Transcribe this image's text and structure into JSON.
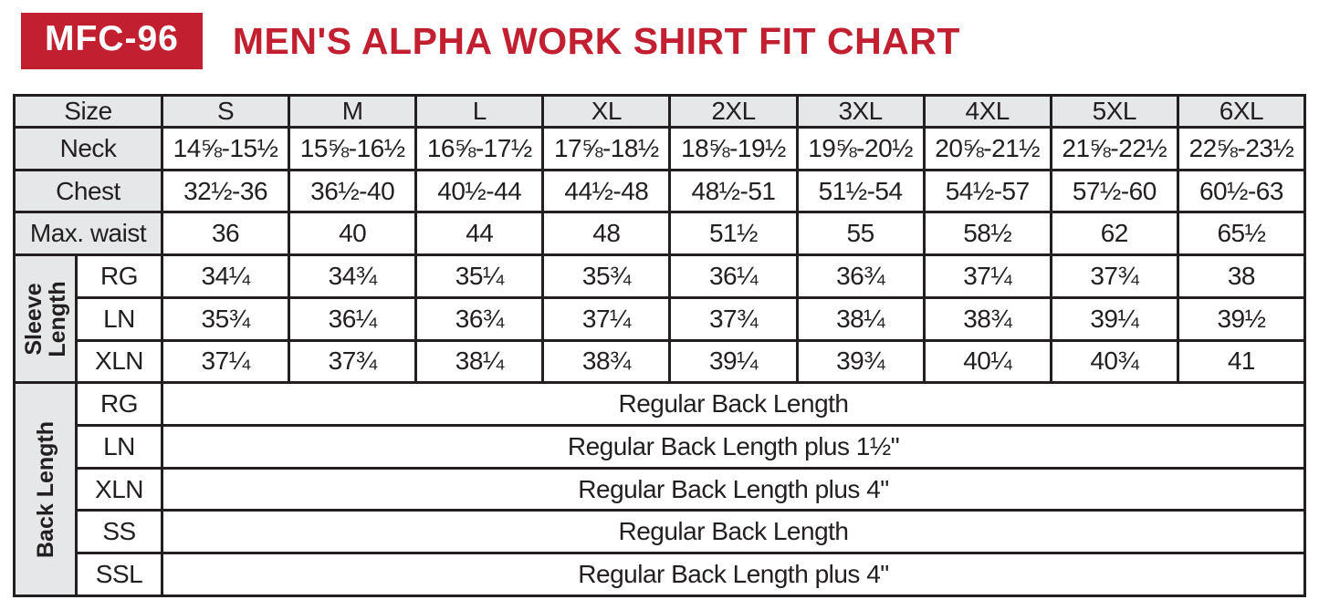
{
  "theme": {
    "accent": "#C22030",
    "header_bg": "#E6E7E8",
    "border": "#231F20",
    "text": "#231F20"
  },
  "chart_data": {
    "type": "table",
    "code": "MFC-96",
    "title": "MEN'S ALPHA WORK SHIRT FIT CHART",
    "columns": [
      "Size",
      "S",
      "M",
      "L",
      "XL",
      "2XL",
      "3XL",
      "4XL",
      "5XL",
      "6XL"
    ],
    "measurement_rows": [
      {
        "label": "Neck",
        "values": [
          "14⅝-15½",
          "15⅝-16½",
          "16⅝-17½",
          "17⅝-18½",
          "18⅝-19½",
          "19⅝-20½",
          "20⅝-21½",
          "21⅝-22½",
          "22⅝-23½"
        ]
      },
      {
        "label": "Chest",
        "values": [
          "32½-36",
          "36½-40",
          "40½-44",
          "44½-48",
          "48½-51",
          "51½-54",
          "54½-57",
          "57½-60",
          "60½-63"
        ]
      },
      {
        "label": "Max. waist",
        "values": [
          "36",
          "40",
          "44",
          "48",
          "51½",
          "55",
          "58½",
          "62",
          "65½"
        ]
      }
    ],
    "sleeve_length": {
      "group_label_lines": [
        "Sleeve",
        "Length"
      ],
      "rows": [
        {
          "label": "RG",
          "values": [
            "34¼",
            "34¾",
            "35¼",
            "35¾",
            "36¼",
            "36¾",
            "37¼",
            "37¾",
            "38"
          ]
        },
        {
          "label": "LN",
          "values": [
            "35¾",
            "36¼",
            "36¾",
            "37¼",
            "37¾",
            "38¼",
            "38¾",
            "39¼",
            "39½"
          ]
        },
        {
          "label": "XLN",
          "values": [
            "37¼",
            "37¾",
            "38¼",
            "38¾",
            "39¼",
            "39¾",
            "40¼",
            "40¾",
            "41"
          ]
        }
      ]
    },
    "back_length": {
      "group_label_lines": [
        "Back Length"
      ],
      "rows": [
        {
          "label": "RG",
          "value": "Regular Back Length"
        },
        {
          "label": "LN",
          "value": "Regular Back Length plus 1½\""
        },
        {
          "label": "XLN",
          "value": "Regular Back Length plus 4\""
        },
        {
          "label": "SS",
          "value": "Regular Back Length"
        },
        {
          "label": "SSL",
          "value": "Regular Back Length plus 4\""
        }
      ]
    }
  }
}
